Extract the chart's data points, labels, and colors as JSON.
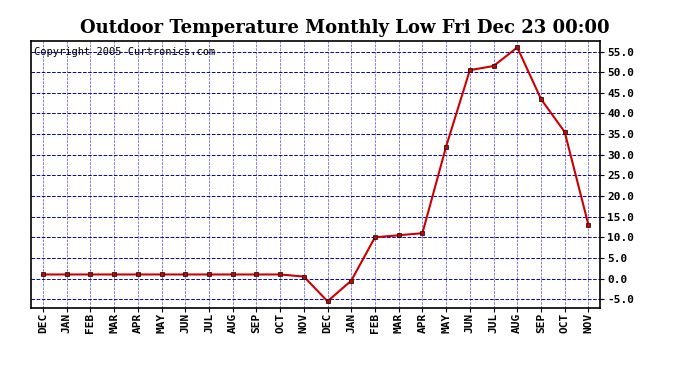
{
  "title": "Outdoor Temperature Monthly Low Fri Dec 23 00:00",
  "copyright": "Copyright 2005 Curtronics.com",
  "x_labels": [
    "DEC",
    "JAN",
    "FEB",
    "MAR",
    "APR",
    "MAY",
    "JUN",
    "JUL",
    "AUG",
    "SEP",
    "OCT",
    "NOV",
    "DEC",
    "JAN",
    "FEB",
    "MAR",
    "APR",
    "MAY",
    "JUN",
    "JUL",
    "AUG",
    "SEP",
    "OCT",
    "NOV"
  ],
  "y_values": [
    1.0,
    1.0,
    1.0,
    1.0,
    1.0,
    1.0,
    1.0,
    1.0,
    1.0,
    1.0,
    1.0,
    0.5,
    -5.5,
    -0.5,
    10.0,
    10.5,
    11.0,
    32.0,
    50.5,
    51.5,
    56.0,
    43.5,
    35.5,
    13.0
  ],
  "line_color": "#cc0000",
  "marker_color": "#cc0000",
  "plot_bg_color": "#ffffff",
  "grid_color": "#0000bb",
  "border_color": "#000000",
  "title_bg": "#ffffff",
  "ylim": [
    -7.0,
    57.5
  ],
  "yticks": [
    -5.0,
    0.0,
    5.0,
    10.0,
    15.0,
    20.0,
    25.0,
    30.0,
    35.0,
    40.0,
    45.0,
    50.0,
    55.0
  ],
  "title_fontsize": 13,
  "copyright_fontsize": 7.5,
  "tick_fontsize": 8,
  "marker_size": 3.5
}
